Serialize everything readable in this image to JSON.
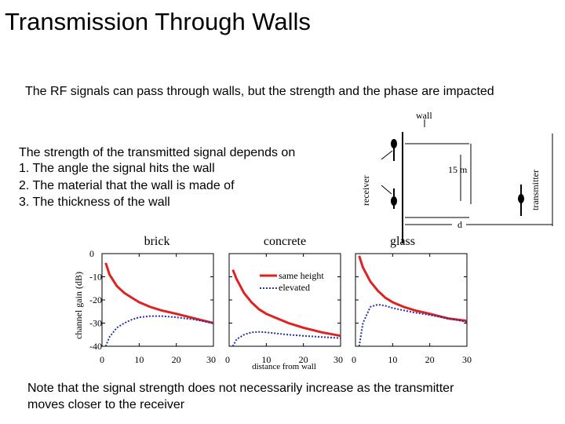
{
  "slide": {
    "title": "Transmission Through Walls",
    "subtitle": "The RF signals can pass through walls, but the strength and the phase are impacted",
    "intro": "The strength of the transmitted signal depends on",
    "points": [
      "1.  The angle the signal hits the wall",
      "2.  The material that the wall is made of",
      "3.  The thickness of the wall"
    ],
    "note_line1": "Note that the signal strength does not necessarily increase as the transmitter",
    "note_line2": "moves closer to the receiver"
  },
  "diagram": {
    "wall_label": "wall",
    "receiver_label": "receiver",
    "transmitter_label": "transmitter",
    "height_label": "15 m",
    "distance_label": "d"
  },
  "chart_data": {
    "type": "line",
    "ylabel": "channel gain (dB)",
    "xlabel": "distance from wall",
    "ylim": [
      -40,
      0
    ],
    "xlim": [
      0,
      30
    ],
    "y_ticks": [
      "0",
      "-10",
      "-20",
      "-30",
      "-40"
    ],
    "x_ticks": [
      "0",
      "10",
      "20",
      "30"
    ],
    "legend": {
      "placement": "top-right of concrete panel",
      "entries": [
        "same height",
        "elevated"
      ]
    },
    "colors": {
      "same_height": "#dd2222",
      "elevated": "#2233aa"
    },
    "panels": [
      {
        "title": "brick",
        "x": [
          1,
          2,
          4,
          6,
          8,
          10,
          13,
          16,
          20,
          25,
          30
        ],
        "series": [
          {
            "name": "same height",
            "values": [
              -4,
              -9,
              -14,
              -17,
              -19,
              -21,
              -23,
              -24.5,
              -26,
              -28,
              -30
            ]
          },
          {
            "name": "elevated",
            "values": [
              -40,
              -36,
              -32,
              -30,
              -28.5,
              -27.5,
              -27,
              -27,
              -27.5,
              -28.5,
              -30
            ]
          }
        ]
      },
      {
        "title": "concrete",
        "x": [
          1,
          2,
          4,
          6,
          8,
          10,
          13,
          16,
          20,
          25,
          30
        ],
        "series": [
          {
            "name": "same height",
            "values": [
              -7,
              -11,
              -17,
              -21,
              -24,
              -26,
              -28,
              -30,
              -32,
              -34,
              -35.5
            ]
          },
          {
            "name": "elevated",
            "values": [
              -40,
              -37,
              -35,
              -34,
              -33.8,
              -34,
              -34.5,
              -35,
              -35.5,
              -36,
              -36.5
            ]
          }
        ]
      },
      {
        "title": "glass",
        "x": [
          1,
          2,
          4,
          6,
          8,
          10,
          13,
          16,
          20,
          25,
          30
        ],
        "series": [
          {
            "name": "same height",
            "values": [
              -1,
              -6,
              -12,
              -16,
              -19,
              -21,
              -23,
              -24.5,
              -26,
              -28,
              -29
            ]
          },
          {
            "name": "elevated",
            "values": [
              -40,
              -30,
              -23,
              -22,
              -22.5,
              -23.5,
              -24.5,
              -25.5,
              -26.5,
              -28,
              -29.5
            ]
          }
        ]
      }
    ]
  }
}
